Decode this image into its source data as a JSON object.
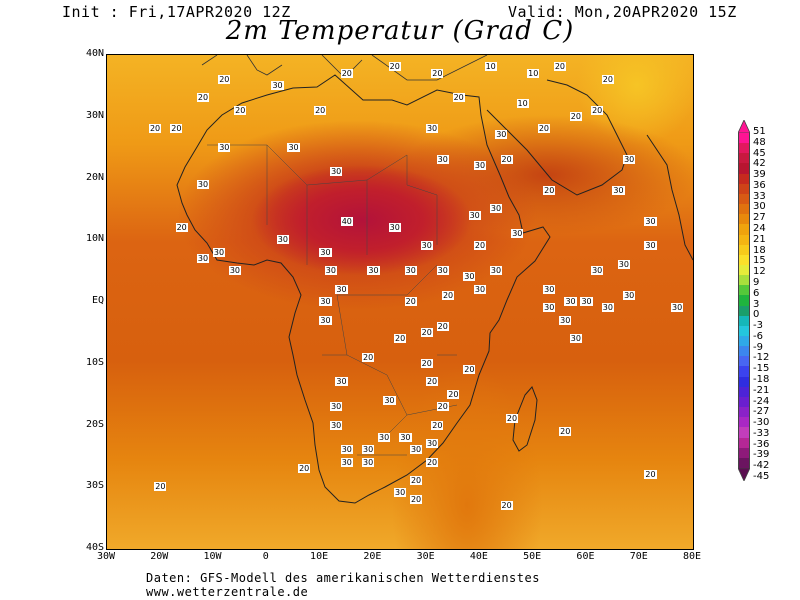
{
  "header": {
    "init_text": "Init : Fri,17APR2020 12Z",
    "valid_text": "Valid: Mon,20APR2020 15Z",
    "title": "2m Temperatur (Grad C)"
  },
  "map": {
    "region": "Africa",
    "lat_range": [
      -40,
      40
    ],
    "lon_range": [
      -30,
      80
    ],
    "lat_labels": [
      "40N",
      "30N",
      "20N",
      "10N",
      "EQ",
      "10S",
      "20S",
      "30S",
      "40S"
    ],
    "lon_labels": [
      "30W",
      "20W",
      "10W",
      "0",
      "10E",
      "20E",
      "30E",
      "40E",
      "50E",
      "60E",
      "70E",
      "80E"
    ],
    "station_values": [
      {
        "lon": -8,
        "lat": 36,
        "v": "20"
      },
      {
        "lon": 2,
        "lat": 35,
        "v": "30"
      },
      {
        "lon": 15,
        "lat": 37,
        "v": "20"
      },
      {
        "lon": 24,
        "lat": 38,
        "v": "20"
      },
      {
        "lon": 32,
        "lat": 37,
        "v": "20"
      },
      {
        "lon": 42,
        "lat": 38,
        "v": "10"
      },
      {
        "lon": 50,
        "lat": 37,
        "v": "10"
      },
      {
        "lon": 55,
        "lat": 38,
        "v": "20"
      },
      {
        "lon": 64,
        "lat": 36,
        "v": "20"
      },
      {
        "lon": -12,
        "lat": 33,
        "v": "20"
      },
      {
        "lon": -5,
        "lat": 31,
        "v": "20"
      },
      {
        "lon": 10,
        "lat": 31,
        "v": "20"
      },
      {
        "lon": 36,
        "lat": 33,
        "v": "20"
      },
      {
        "lon": 48,
        "lat": 32,
        "v": "10"
      },
      {
        "lon": 58,
        "lat": 30,
        "v": "20"
      },
      {
        "lon": 62,
        "lat": 31,
        "v": "20"
      },
      {
        "lon": -21,
        "lat": 28,
        "v": "20"
      },
      {
        "lon": -17,
        "lat": 28,
        "v": "20"
      },
      {
        "lon": -8,
        "lat": 25,
        "v": "30"
      },
      {
        "lon": 5,
        "lat": 25,
        "v": "30"
      },
      {
        "lon": 31,
        "lat": 28,
        "v": "30"
      },
      {
        "lon": 44,
        "lat": 27,
        "v": "30"
      },
      {
        "lon": 52,
        "lat": 28,
        "v": "20"
      },
      {
        "lon": -12,
        "lat": 19,
        "v": "30"
      },
      {
        "lon": 13,
        "lat": 21,
        "v": "30"
      },
      {
        "lon": 33,
        "lat": 23,
        "v": "30"
      },
      {
        "lon": 40,
        "lat": 22,
        "v": "30"
      },
      {
        "lon": 45,
        "lat": 23,
        "v": "20"
      },
      {
        "lon": 68,
        "lat": 23,
        "v": "30"
      },
      {
        "lon": 53,
        "lat": 18,
        "v": "20"
      },
      {
        "lon": 66,
        "lat": 18,
        "v": "30"
      },
      {
        "lon": -16,
        "lat": 12,
        "v": "20"
      },
      {
        "lon": 15,
        "lat": 13,
        "v": "40"
      },
      {
        "lon": 24,
        "lat": 12,
        "v": "30"
      },
      {
        "lon": 39,
        "lat": 14,
        "v": "30"
      },
      {
        "lon": 43,
        "lat": 15,
        "v": "30"
      },
      {
        "lon": 47,
        "lat": 11,
        "v": "30"
      },
      {
        "lon": 72,
        "lat": 13,
        "v": "30"
      },
      {
        "lon": 3,
        "lat": 10,
        "v": "30"
      },
      {
        "lon": -9,
        "lat": 8,
        "v": "30"
      },
      {
        "lon": 11,
        "lat": 8,
        "v": "30"
      },
      {
        "lon": -12,
        "lat": 7,
        "v": "30"
      },
      {
        "lon": 30,
        "lat": 9,
        "v": "30"
      },
      {
        "lon": 40,
        "lat": 9,
        "v": "20"
      },
      {
        "lon": 72,
        "lat": 9,
        "v": "30"
      },
      {
        "lon": -6,
        "lat": 5,
        "v": "30"
      },
      {
        "lon": 12,
        "lat": 5,
        "v": "30"
      },
      {
        "lon": 20,
        "lat": 5,
        "v": "30"
      },
      {
        "lon": 27,
        "lat": 5,
        "v": "30"
      },
      {
        "lon": 33,
        "lat": 5,
        "v": "30"
      },
      {
        "lon": 38,
        "lat": 4,
        "v": "30"
      },
      {
        "lon": 43,
        "lat": 5,
        "v": "30"
      },
      {
        "lon": 62,
        "lat": 5,
        "v": "30"
      },
      {
        "lon": 67,
        "lat": 6,
        "v": "30"
      },
      {
        "lon": 14,
        "lat": 2,
        "v": "30"
      },
      {
        "lon": 40,
        "lat": 2,
        "v": "30"
      },
      {
        "lon": 53,
        "lat": 2,
        "v": "30"
      },
      {
        "lon": 68,
        "lat": 1,
        "v": "30"
      },
      {
        "lon": 11,
        "lat": 0,
        "v": "30"
      },
      {
        "lon": 27,
        "lat": 0,
        "v": "20"
      },
      {
        "lon": 34,
        "lat": 1,
        "v": "20"
      },
      {
        "lon": 53,
        "lat": -1,
        "v": "30"
      },
      {
        "lon": 57,
        "lat": 0,
        "v": "30"
      },
      {
        "lon": 60,
        "lat": 0,
        "v": "30"
      },
      {
        "lon": 64,
        "lat": -1,
        "v": "30"
      },
      {
        "lon": 77,
        "lat": -1,
        "v": "30"
      },
      {
        "lon": 11,
        "lat": -3,
        "v": "30"
      },
      {
        "lon": 33,
        "lat": -4,
        "v": "20"
      },
      {
        "lon": 56,
        "lat": -3,
        "v": "30"
      },
      {
        "lon": 25,
        "lat": -6,
        "v": "20"
      },
      {
        "lon": 30,
        "lat": -5,
        "v": "20"
      },
      {
        "lon": 58,
        "lat": -6,
        "v": "30"
      },
      {
        "lon": 19,
        "lat": -9,
        "v": "20"
      },
      {
        "lon": 30,
        "lat": -10,
        "v": "20"
      },
      {
        "lon": 38,
        "lat": -11,
        "v": "20"
      },
      {
        "lon": 14,
        "lat": -13,
        "v": "30"
      },
      {
        "lon": 31,
        "lat": -13,
        "v": "20"
      },
      {
        "lon": 35,
        "lat": -15,
        "v": "20"
      },
      {
        "lon": 13,
        "lat": -17,
        "v": "30"
      },
      {
        "lon": 23,
        "lat": -16,
        "v": "30"
      },
      {
        "lon": 33,
        "lat": -17,
        "v": "20"
      },
      {
        "lon": 46,
        "lat": -19,
        "v": "20"
      },
      {
        "lon": 13,
        "lat": -20,
        "v": "30"
      },
      {
        "lon": 32,
        "lat": -20,
        "v": "20"
      },
      {
        "lon": 22,
        "lat": -22,
        "v": "30"
      },
      {
        "lon": 26,
        "lat": -22,
        "v": "30"
      },
      {
        "lon": 56,
        "lat": -21,
        "v": "20"
      },
      {
        "lon": 15,
        "lat": -24,
        "v": "30"
      },
      {
        "lon": 19,
        "lat": -24,
        "v": "30"
      },
      {
        "lon": 28,
        "lat": -24,
        "v": "30"
      },
      {
        "lon": 31,
        "lat": -23,
        "v": "30"
      },
      {
        "lon": 15,
        "lat": -26,
        "v": "30"
      },
      {
        "lon": 19,
        "lat": -26,
        "v": "30"
      },
      {
        "lon": 31,
        "lat": -26,
        "v": "20"
      },
      {
        "lon": 7,
        "lat": -27,
        "v": "20"
      },
      {
        "lon": 72,
        "lat": -28,
        "v": "20"
      },
      {
        "lon": 28,
        "lat": -29,
        "v": "20"
      },
      {
        "lon": -20,
        "lat": -30,
        "v": "20"
      },
      {
        "lon": 25,
        "lat": -31,
        "v": "30"
      },
      {
        "lon": 28,
        "lat": -32,
        "v": "20"
      },
      {
        "lon": 45,
        "lat": -33,
        "v": "20"
      }
    ]
  },
  "colorbar": {
    "labels": [
      "51",
      "48",
      "45",
      "42",
      "39",
      "36",
      "33",
      "30",
      "27",
      "24",
      "21",
      "18",
      "15",
      "12",
      "9",
      "6",
      "3",
      "0",
      "-3",
      "-6",
      "-9",
      "-12",
      "-15",
      "-18",
      "-21",
      "-24",
      "-27",
      "-30",
      "-33",
      "-36",
      "-39",
      "-42",
      "-45"
    ],
    "colors": [
      "#ff1493",
      "#e2185e",
      "#c8193f",
      "#b81530",
      "#c62a1f",
      "#cf4318",
      "#d85a14",
      "#e0720f",
      "#e8890c",
      "#f0a30d",
      "#f5b512",
      "#f8cb1b",
      "#fbe02a",
      "#e6ec3a",
      "#a8df3c",
      "#54c83a",
      "#1fb43e",
      "#1a9e6b",
      "#15b7b9",
      "#24c6dd",
      "#2fa9e8",
      "#3c86ee",
      "#4866f2",
      "#3b43ee",
      "#2f2de0",
      "#4d23d6",
      "#6a1fcf",
      "#8a22c8",
      "#a928c4",
      "#c23dbb",
      "#b52796",
      "#8e1a7a",
      "#6b1460"
    ]
  },
  "footer": {
    "line1": "Daten: GFS-Modell des amerikanischen Wetterdienstes",
    "line2": "www.wetterzentrale.de"
  }
}
